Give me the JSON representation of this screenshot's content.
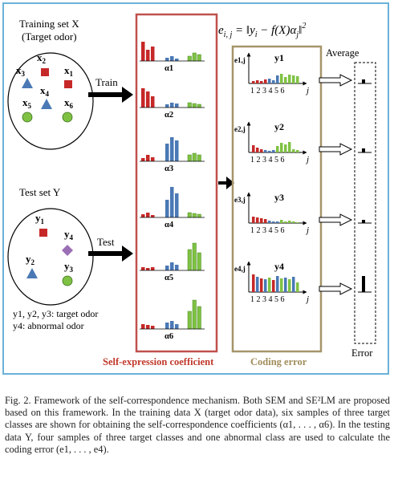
{
  "figure": {
    "training": {
      "title_line1": "Training set X",
      "title_line2": "(Target odor)",
      "samples": [
        "x2",
        "x1",
        "x3",
        "x4",
        "x5",
        "x6"
      ]
    },
    "testing": {
      "title": "Test set Y",
      "samples": [
        "y1",
        "y4",
        "y2",
        "y3"
      ],
      "legend_line1": "y1, y2, y3: target odor",
      "legend_line2": "y4: abnormal odor"
    },
    "arrow_train": "Train",
    "arrow_test": "Test",
    "formula": "e_{i,j} = ||y_i − f(X)α_j||²",
    "alpha_labels": [
      "α1",
      "α2",
      "α3",
      "α4",
      "α5",
      "α6"
    ],
    "self_expression_label": "Self-expression coefficient",
    "coding_error_label": "Coding error",
    "coding_panels": [
      {
        "e": "e1,j",
        "y": "y1"
      },
      {
        "e": "e2,j",
        "y": "y2"
      },
      {
        "e": "e3,j",
        "y": "y3"
      },
      {
        "e": "e4,j",
        "y": "y4"
      }
    ],
    "axis_ticks": "1 2 3 4 5 6",
    "axis_j": "j",
    "average_label": "Average",
    "error_label": "Error",
    "colors": {
      "red": "#c62828",
      "blue": "#4a79b5",
      "green": "#7fc243",
      "self_box": "#c0504d",
      "coding_box": "#a6956a",
      "outer_border": "#6ab2d8",
      "self_text": "#c0392b",
      "coding_text": "#a08c5c"
    }
  },
  "caption": {
    "text": "Fig. 2.   Framework of the self-correspondence mechanism. Both SEM and SE²LM are proposed based on this framework. In the training data X (target odor data), six samples of three target classes are shown for obtaining the self-correspondence coefficients (α1, . . . , α6). In the testing data Y, four samples of three target classes and one abnormal class are used to calculate the coding error (e1, . . . , e4)."
  }
}
